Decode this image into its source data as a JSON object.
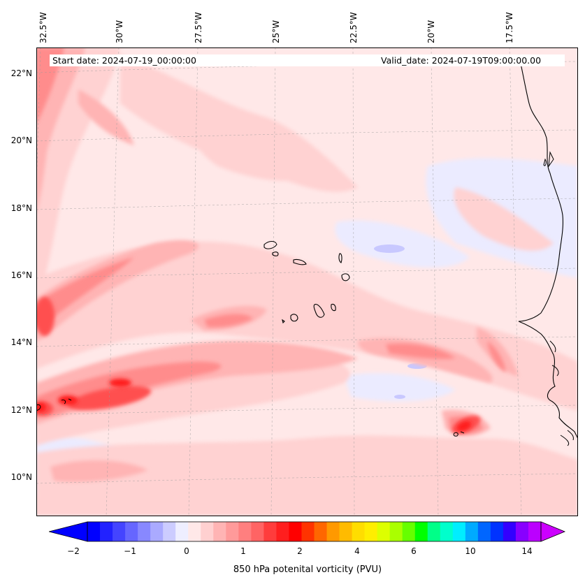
{
  "map": {
    "start_date": "Start date: 2024-07-19_00:00:00",
    "valid_date": "Valid_date: 2024-07-19T09:00:00.00",
    "lon_labels": [
      "32.5°W",
      "30°W",
      "27.5°W",
      "25°W",
      "22.5°W",
      "20°W",
      "17.5°W"
    ],
    "lat_labels": [
      "22°N",
      "20°N",
      "18°N",
      "16°N",
      "14°N",
      "12°N",
      "10°N"
    ],
    "gridlines": true,
    "colors": {
      "background": "#ffe8e8",
      "pale_blue": "#ebebff",
      "blue": "#c8c8ff",
      "pink_light": "#ffd2d2",
      "pink": "#ffb4b4",
      "red_mid": "#ff8c8c",
      "red_strong": "#ff5050",
      "red_core": "#ff1e1e",
      "coast": "#000000"
    }
  },
  "colorbar": {
    "label": "850 hPa potenital vorticity (PVU)",
    "ticks": [
      "−2",
      "−1",
      "0",
      "1",
      "2",
      "4",
      "6",
      "10",
      "14"
    ],
    "colors": [
      "#0000ff",
      "#2222ff",
      "#4444ff",
      "#6666ff",
      "#8888ff",
      "#aaaaff",
      "#ccccff",
      "#eeeeff",
      "#ffe8e8",
      "#ffd0d0",
      "#ffb4b4",
      "#ff9a9a",
      "#ff7f7f",
      "#ff6464",
      "#ff3c3c",
      "#ff1e1e",
      "#ff0000",
      "#ff3300",
      "#ff6600",
      "#ff9900",
      "#ffbb00",
      "#ffdd00",
      "#ffee00",
      "#ddff00",
      "#aaff00",
      "#66ff00",
      "#00ff00",
      "#00ff88",
      "#00ffcc",
      "#00eeff",
      "#00aaff",
      "#0066ff",
      "#0033ff",
      "#3300ff",
      "#8800ff",
      "#bb00ff"
    ]
  }
}
